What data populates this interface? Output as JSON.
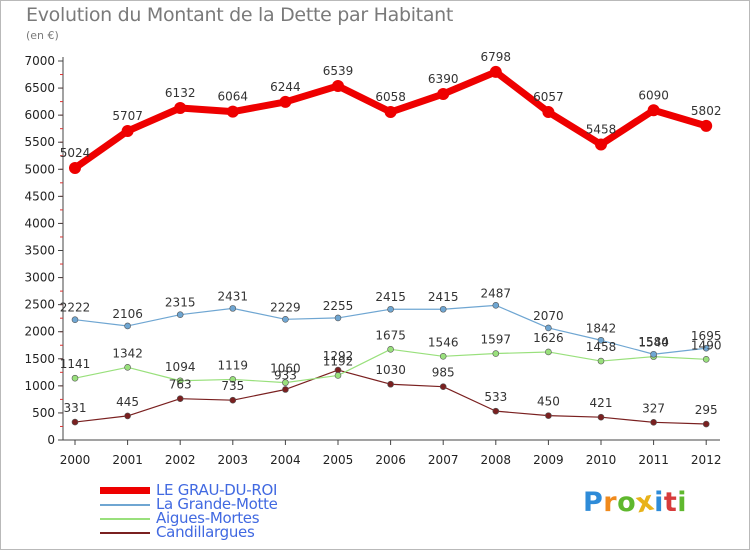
{
  "title": "Evolution du Montant de la Dette par Habitant",
  "unit_label": "(en €)",
  "logo": {
    "letters": [
      "P",
      "r",
      "o",
      "x",
      "i",
      "t",
      "i"
    ],
    "colors": [
      "#2e8bd8",
      "#f08a1c",
      "#5fb82e",
      "#e8b21a",
      "#2e8bd8",
      "#d73b3b",
      "#5fb82e"
    ]
  },
  "chart_data": {
    "type": "line",
    "title": "Evolution du Montant de la Dette par Habitant",
    "ylabel": "(en €)",
    "x": [
      "2000",
      "2001",
      "2002",
      "2003",
      "2004",
      "2005",
      "2006",
      "2007",
      "2008",
      "2009",
      "2010",
      "2011",
      "2012"
    ],
    "ylim": [
      0,
      7000
    ],
    "yticks": [
      0,
      500,
      1000,
      1500,
      2000,
      2500,
      3000,
      3500,
      4000,
      4500,
      5000,
      5500,
      6000,
      6500,
      7000
    ],
    "grid": false,
    "legend_position": "bottom-left",
    "series": [
      {
        "name": "LE GRAU-DU-ROI",
        "color": "#ee0000",
        "values": [
          5024,
          5707,
          6132,
          6064,
          6244,
          6539,
          6058,
          6390,
          6798,
          6057,
          5458,
          6090,
          5802
        ]
      },
      {
        "name": "La Grande-Motte",
        "color": "#6fa6d2",
        "values": [
          2222,
          2106,
          2315,
          2431,
          2229,
          2255,
          2415,
          2415,
          2487,
          2070,
          1842,
          1584,
          1695
        ]
      },
      {
        "name": "Aigues-Mortes",
        "color": "#99e07c",
        "values": [
          1141,
          1342,
          1094,
          1119,
          1060,
          1192,
          1675,
          1546,
          1597,
          1626,
          1458,
          1540,
          1490
        ]
      },
      {
        "name": "Candillargues",
        "color": "#7a2020",
        "values": [
          331,
          445,
          763,
          735,
          933,
          1292,
          1030,
          985,
          533,
          450,
          421,
          327,
          295
        ]
      }
    ]
  }
}
